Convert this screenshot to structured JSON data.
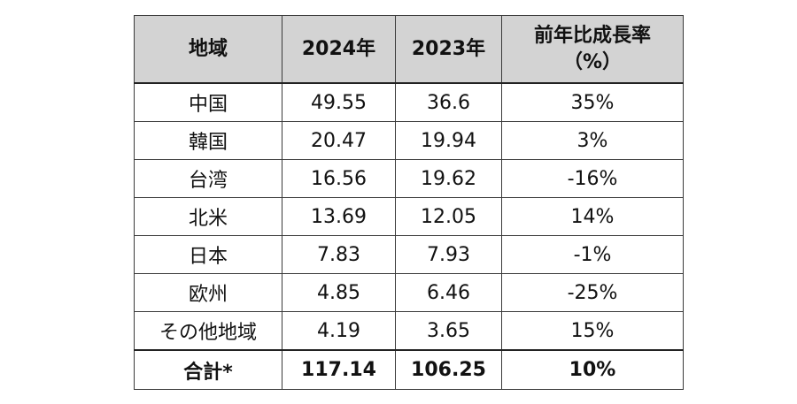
{
  "table": {
    "headers": [
      "地域",
      "2024年",
      "2023年",
      "前年比成長率（%）"
    ],
    "rows": [
      [
        "中国",
        "49.55",
        "36.6",
        "35%"
      ],
      [
        "韓国",
        "20.47",
        "19.94",
        "3%"
      ],
      [
        "台湾",
        "16.56",
        "19.62",
        "-16%"
      ],
      [
        "北米",
        "13.69",
        "12.05",
        "14%"
      ],
      [
        "日本",
        "7.83",
        "7.93",
        "-1%"
      ],
      [
        "欧州",
        "4.85",
        "6.46",
        "-25%"
      ],
      [
        "その他地域",
        "4.19",
        "3.65",
        "15%"
      ]
    ],
    "total": [
      "合計*",
      "117.14",
      "106.25",
      "10%"
    ]
  }
}
